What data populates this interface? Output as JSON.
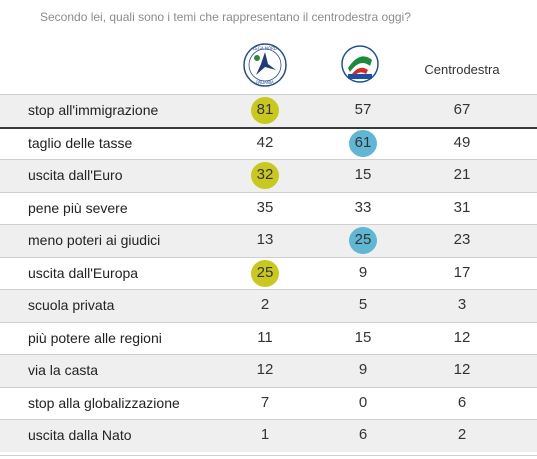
{
  "question": "Secondo lei, quali sono i temi che rappresentano il centrodestra oggi?",
  "columns": [
    "Lega Nord",
    "Forza Italia",
    "Centrodestra"
  ],
  "column_header_text": "Centrodestra",
  "logos": {
    "lega_text": "LEGA NORD PADANIA",
    "fi_text": "FORZA ITALIA BERLUSCONI"
  },
  "colors": {
    "highlight_lega": "#c8c81e",
    "highlight_fi": "#5fb7d3",
    "shading": "#efefef"
  },
  "chart_data": {
    "type": "table",
    "title": "Secondo lei, quali sono i temi che rappresentano il centrodestra oggi?",
    "columns": [
      "Lega Nord",
      "Forza Italia",
      "Centrodestra"
    ],
    "rows": [
      {
        "label": "stop all'immigrazione",
        "values": [
          81,
          57,
          67
        ],
        "highlight": "lega"
      },
      {
        "label": "taglio delle tasse",
        "values": [
          42,
          61,
          49
        ],
        "highlight": "fi"
      },
      {
        "label": "uscita dall'Euro",
        "values": [
          32,
          15,
          21
        ],
        "highlight": "lega"
      },
      {
        "label": "pene più severe",
        "values": [
          35,
          33,
          31
        ],
        "highlight": ""
      },
      {
        "label": "meno poteri ai giudici",
        "values": [
          13,
          25,
          23
        ],
        "highlight": "fi"
      },
      {
        "label": "uscita dall'Europa",
        "values": [
          25,
          9,
          17
        ],
        "highlight": "lega"
      },
      {
        "label": "scuola privata",
        "values": [
          2,
          5,
          3
        ],
        "highlight": ""
      },
      {
        "label": "più potere alle regioni",
        "values": [
          11,
          15,
          12
        ],
        "highlight": ""
      },
      {
        "label": "via la casta",
        "values": [
          12,
          9,
          12
        ],
        "highlight": ""
      },
      {
        "label": "stop alla globalizzazione",
        "values": [
          7,
          0,
          6
        ],
        "highlight": ""
      },
      {
        "label": "uscita dalla Nato",
        "values": [
          1,
          6,
          2
        ],
        "highlight": ""
      }
    ]
  }
}
